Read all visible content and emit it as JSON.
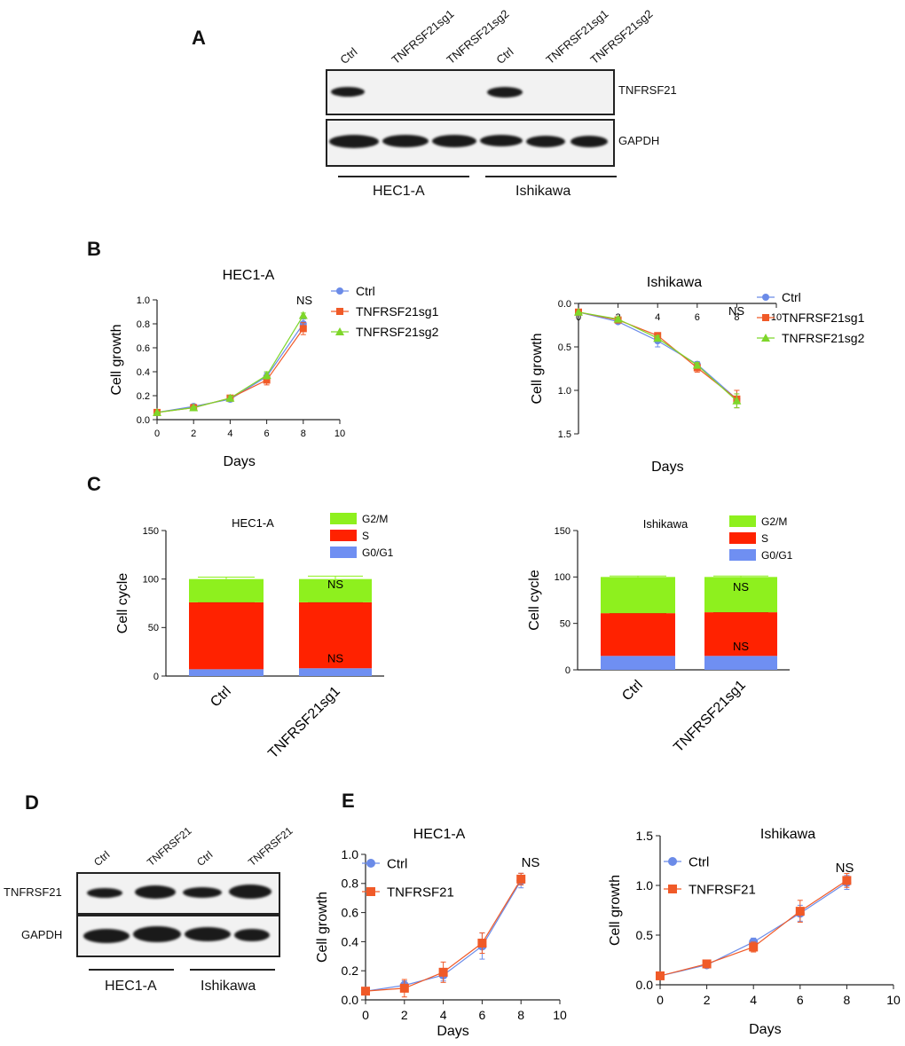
{
  "panels": {
    "A": "A",
    "B": "B",
    "C": "C",
    "D": "D",
    "E": "E"
  },
  "blot_A": {
    "lanes": [
      "Ctrl",
      "TNFRSF21sg1",
      "TNFRSF21sg2",
      "Ctrl",
      "TNFRSF21sg1",
      "TNFRSF21sg2"
    ],
    "proteins": [
      "TNFRSF21",
      "GAPDH"
    ],
    "groups": [
      "HEC1-A",
      "Ishikawa"
    ]
  },
  "blot_D": {
    "lanes": [
      "Ctrl",
      "TNFRSF21",
      "Ctrl",
      "TNFRSF21"
    ],
    "proteins": [
      "TNFRSF21",
      "GAPDH"
    ],
    "groups": [
      "HEC1-A",
      "Ishikawa"
    ]
  },
  "chart_data": [
    {
      "id": "B-HEC1-A",
      "type": "line",
      "title": "HEC1-A",
      "xlabel": "Days",
      "ylabel": "Cell growth",
      "xlim": [
        0,
        10
      ],
      "ylim": [
        0,
        1.0
      ],
      "xticks": [
        "0",
        "2",
        "4",
        "6",
        "8",
        "10"
      ],
      "yticks": [
        "0.0",
        "0.2",
        "0.4",
        "0.6",
        "0.8",
        "1.0"
      ],
      "x": [
        0,
        2,
        4,
        6,
        8
      ],
      "series": [
        {
          "name": "Ctrl",
          "color": "#6b8be8",
          "marker": "circle",
          "values": [
            0.06,
            0.11,
            0.17,
            0.36,
            0.8
          ],
          "err": [
            0,
            0.02,
            0.02,
            0.03,
            0.04
          ]
        },
        {
          "name": "TNFRSF21sg1",
          "color": "#f05a28",
          "marker": "square",
          "values": [
            0.06,
            0.1,
            0.18,
            0.33,
            0.76
          ],
          "err": [
            0,
            0.02,
            0.02,
            0.04,
            0.05
          ]
        },
        {
          "name": "TNFRSF21sg2",
          "color": "#7ed62a",
          "marker": "triangle",
          "values": [
            0.06,
            0.1,
            0.18,
            0.37,
            0.87
          ],
          "err": [
            0,
            0.01,
            0.02,
            0.03,
            0.02
          ]
        }
      ],
      "annotation": "NS",
      "legend": "top-right"
    },
    {
      "id": "B-Ishikawa",
      "type": "line",
      "title": "Ishikawa",
      "xlabel": "Days",
      "ylabel": "Cell growth",
      "xlim": [
        0,
        10
      ],
      "ylim": [
        0,
        1.5
      ],
      "xticks": [
        "0",
        "2",
        "4",
        "6",
        "8",
        "10"
      ],
      "yticks": [
        "0.0",
        "0.5",
        "1.0",
        "1.5"
      ],
      "x": [
        0,
        2,
        4,
        6,
        8
      ],
      "series": [
        {
          "name": "Ctrl",
          "color": "#6b8be8",
          "marker": "circle",
          "values": [
            0.1,
            0.21,
            0.43,
            0.7,
            1.1
          ],
          "err": [
            0,
            0.02,
            0.07,
            0.03,
            0.1
          ]
        },
        {
          "name": "TNFRSF21sg1",
          "color": "#f05a28",
          "marker": "square",
          "values": [
            0.1,
            0.19,
            0.37,
            0.74,
            1.1
          ],
          "err": [
            0,
            0.02,
            0.03,
            0.05,
            0.1
          ]
        },
        {
          "name": "TNFRSF21sg2",
          "color": "#7ed62a",
          "marker": "triangle",
          "values": [
            0.1,
            0.18,
            0.4,
            0.71,
            1.12
          ],
          "err": [
            0,
            0.02,
            0.03,
            0.03,
            0.08
          ]
        }
      ],
      "annotation": "NS",
      "legend": "top-right"
    },
    {
      "id": "C-HEC1-A",
      "type": "bar",
      "stacked": true,
      "title": "HEC1-A",
      "ylabel": "Cell cycle",
      "ylim": [
        0,
        150
      ],
      "yticks": [
        "0",
        "50",
        "100",
        "150"
      ],
      "categories": [
        "Ctrl",
        "TNFRSF21sg1"
      ],
      "series": [
        {
          "name": "G0/G1",
          "color": "#6f8ff2",
          "values": [
            7,
            8
          ]
        },
        {
          "name": "S",
          "color": "#ff2200",
          "values": [
            69,
            68
          ]
        },
        {
          "name": "G2/M",
          "color": "#8ef01e",
          "values": [
            24,
            24
          ],
          "err": [
            2,
            3
          ]
        }
      ],
      "annotations": [
        "NS",
        "NS"
      ],
      "legend": "top-right"
    },
    {
      "id": "C-Ishikawa",
      "type": "bar",
      "stacked": true,
      "title": "Ishikawa",
      "ylabel": "Cell cycle",
      "ylim": [
        0,
        150
      ],
      "yticks": [
        "0",
        "50",
        "100",
        "150"
      ],
      "categories": [
        "Ctrl",
        "TNFRSF21sg1"
      ],
      "series": [
        {
          "name": "G0/G1",
          "color": "#6f8ff2",
          "values": [
            15,
            15
          ]
        },
        {
          "name": "S",
          "color": "#ff2200",
          "values": [
            46,
            47
          ]
        },
        {
          "name": "G2/M",
          "color": "#8ef01e",
          "values": [
            39,
            38
          ],
          "err": [
            1,
            1
          ]
        }
      ],
      "annotations": [
        "NS",
        "NS"
      ],
      "legend": "top-right"
    },
    {
      "id": "E-HEC1-A",
      "type": "line",
      "title": "HEC1-A",
      "xlabel": "Days",
      "ylabel": "Cell growth",
      "xlim": [
        0,
        10
      ],
      "ylim": [
        0,
        1.0
      ],
      "xticks": [
        "0",
        "2",
        "4",
        "6",
        "8",
        "10"
      ],
      "yticks": [
        "0.0",
        "0.2",
        "0.4",
        "0.6",
        "0.8",
        "1.0"
      ],
      "x": [
        0,
        2,
        4,
        6,
        8
      ],
      "series": [
        {
          "name": "Ctrl",
          "color": "#6b8be8",
          "marker": "circle",
          "values": [
            0.06,
            0.1,
            0.17,
            0.37,
            0.82
          ],
          "err": [
            0,
            0.03,
            0.04,
            0.09,
            0.05
          ]
        },
        {
          "name": "TNFRSF21",
          "color": "#f05a28",
          "marker": "square",
          "values": [
            0.06,
            0.08,
            0.19,
            0.39,
            0.83
          ],
          "err": [
            0,
            0.06,
            0.07,
            0.07,
            0.04
          ]
        }
      ],
      "annotation": "NS",
      "legend": "top-left"
    },
    {
      "id": "E-Ishikawa",
      "type": "line",
      "title": "Ishikawa",
      "xlabel": "Days",
      "ylabel": "Cell growth",
      "xlim": [
        0,
        10
      ],
      "ylim": [
        0,
        1.5
      ],
      "xticks": [
        "0",
        "2",
        "4",
        "6",
        "8",
        "10"
      ],
      "yticks": [
        "0.0",
        "0.5",
        "1.0",
        "1.5"
      ],
      "x": [
        0,
        2,
        4,
        6,
        8
      ],
      "series": [
        {
          "name": "Ctrl",
          "color": "#6b8be8",
          "marker": "circle",
          "values": [
            0.09,
            0.2,
            0.43,
            0.72,
            1.03
          ],
          "err": [
            0,
            0.01,
            0.04,
            0.08,
            0.07
          ]
        },
        {
          "name": "TNFRSF21",
          "color": "#f05a28",
          "marker": "square",
          "values": [
            0.09,
            0.21,
            0.38,
            0.74,
            1.05
          ],
          "err": [
            0,
            0.01,
            0.05,
            0.11,
            0.07
          ]
        }
      ],
      "annotation": "NS",
      "legend": "top-left"
    }
  ]
}
